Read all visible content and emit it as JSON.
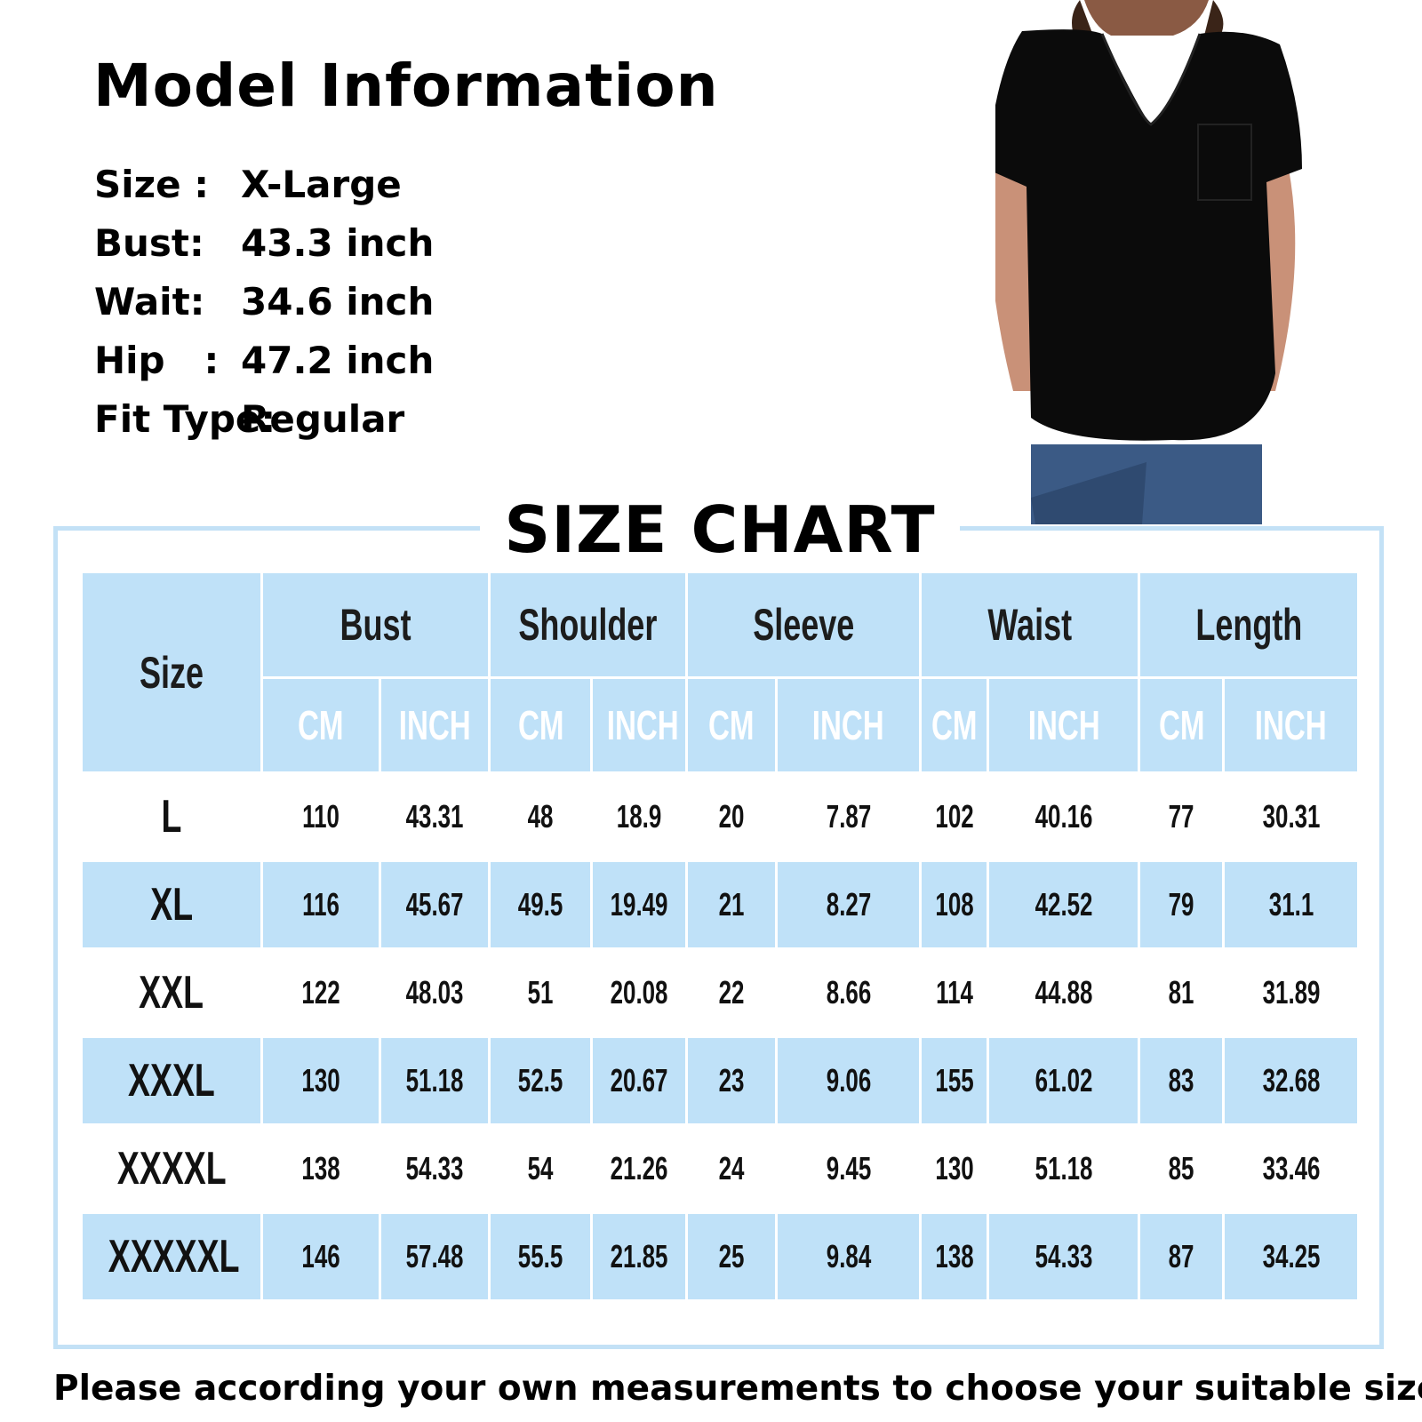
{
  "model_info": {
    "title": "Model Information",
    "rows": [
      {
        "label": "Size :",
        "value": "X-Large"
      },
      {
        "label": "Bust:",
        "value": "43.3 inch"
      },
      {
        "label": "Wait:",
        "value": "34.6 inch"
      },
      {
        "label": "Hip   :",
        "value": "47.2 inch"
      },
      {
        "label": "Fit Type:",
        "value": "Regular"
      }
    ]
  },
  "size_chart": {
    "title": "SIZE CHART",
    "size_header": "Size",
    "groups": [
      "Bust",
      "Shoulder",
      "Sleeve",
      "Waist",
      "Length"
    ],
    "units": [
      "CM",
      "INCH"
    ],
    "rows": [
      {
        "size": "L",
        "values": [
          "110",
          "43.31",
          "48",
          "18.9",
          "20",
          "7.87",
          "102",
          "40.16",
          "77",
          "30.31"
        ]
      },
      {
        "size": "XL",
        "values": [
          "116",
          "45.67",
          "49.5",
          "19.49",
          "21",
          "8.27",
          "108",
          "42.52",
          "79",
          "31.1"
        ]
      },
      {
        "size": "XXL",
        "values": [
          "122",
          "48.03",
          "51",
          "20.08",
          "22",
          "8.66",
          "114",
          "44.88",
          "81",
          "31.89"
        ]
      },
      {
        "size": "XXXL",
        "values": [
          "130",
          "51.18",
          "52.5",
          "20.67",
          "23",
          "9.06",
          "155",
          "61.02",
          "83",
          "32.68"
        ]
      },
      {
        "size": "XXXXL",
        "values": [
          "138",
          "54.33",
          "54",
          "21.26",
          "24",
          "9.45",
          "130",
          "51.18",
          "85",
          "33.46"
        ]
      },
      {
        "size": "XXXXXL",
        "values": [
          "146",
          "57.48",
          "55.5",
          "21.85",
          "25",
          "9.84",
          "138",
          "54.33",
          "87",
          "34.25"
        ]
      }
    ],
    "fill_color": "#bfe1f8",
    "frame_color": "#c3e1f6"
  },
  "footer": "Please according your own measurements to choose your suitable size"
}
